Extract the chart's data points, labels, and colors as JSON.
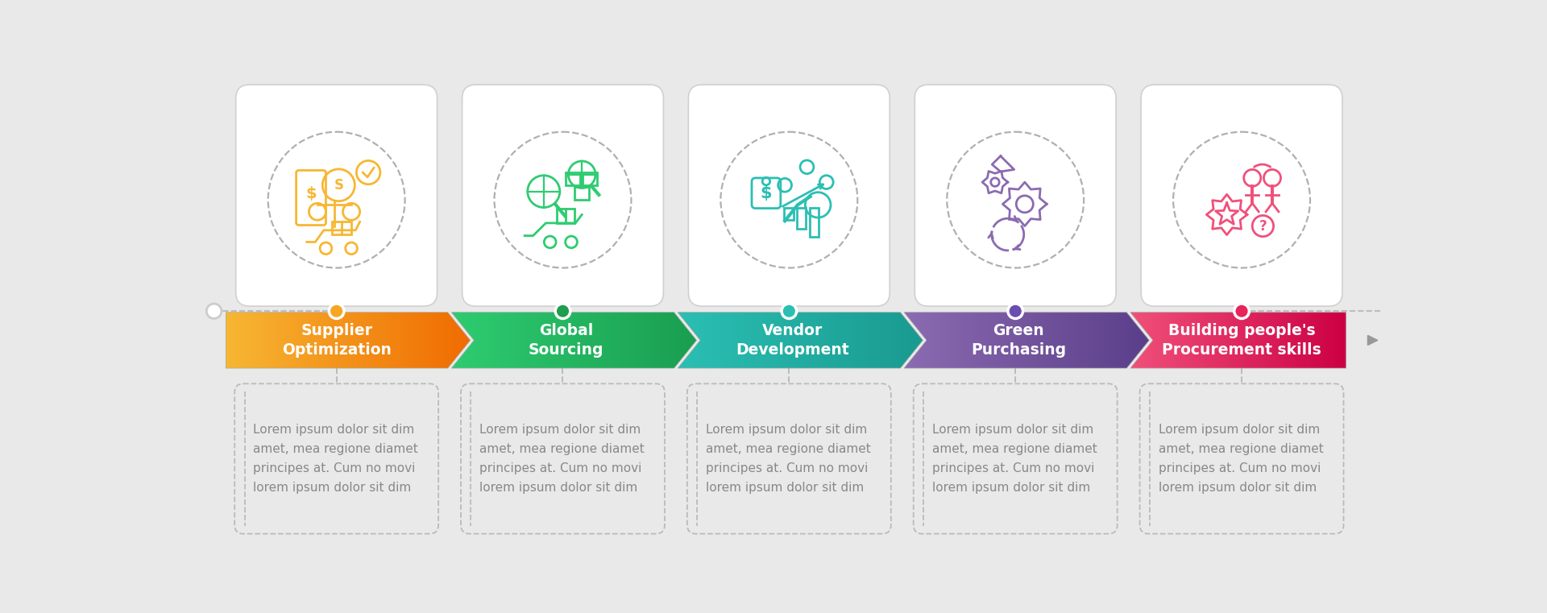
{
  "background_color": "#e9e9e9",
  "steps": [
    {
      "title": "Supplier\nOptimization",
      "color_left": "#F7B733",
      "color_right": "#F06B00",
      "dot_color": "#F5A623",
      "text": "Lorem ipsum dolor sit dim\namet, mea regione diamet\nprincipes at. Cum no movi\nlorem ipsum dolor sit dim"
    },
    {
      "title": "Global\nSourcing",
      "color_left": "#2ECC71",
      "color_right": "#1A9E50",
      "dot_color": "#1E9E4E",
      "text": "Lorem ipsum dolor sit dim\namet, mea regione diamet\nprincipes at. Cum no movi\nlorem ipsum dolor sit dim"
    },
    {
      "title": "Vendor\nDevelopment",
      "color_left": "#2BBFB3",
      "color_right": "#1A9A90",
      "dot_color": "#2BBFB3",
      "text": "Lorem ipsum dolor sit dim\namet, mea regione diamet\nprincipes at. Cum no movi\nlorem ipsum dolor sit dim"
    },
    {
      "title": "Green\nPurchasing",
      "color_left": "#8B6BB1",
      "color_right": "#5B3E8A",
      "dot_color": "#6A4DB0",
      "text": "Lorem ipsum dolor sit dim\namet, mea regione diamet\nprincipes at. Cum no movi\nlorem ipsum dolor sit dim"
    },
    {
      "title": "Building people's\nProcurement skills",
      "color_left": "#F0507A",
      "color_right": "#CC0044",
      "dot_color": "#E8245A",
      "text": "Lorem ipsum dolor sit dim\namet, mea regione diamet\nprincipes at. Cum no movi\nlorem ipsum dolor sit dim"
    }
  ],
  "connector_color": "#bbbbbb",
  "text_color": "#888888",
  "box_border_color": "#d0d0d0",
  "arrow_tip_color": "#999999",
  "gap_color": "#e9e9e9"
}
